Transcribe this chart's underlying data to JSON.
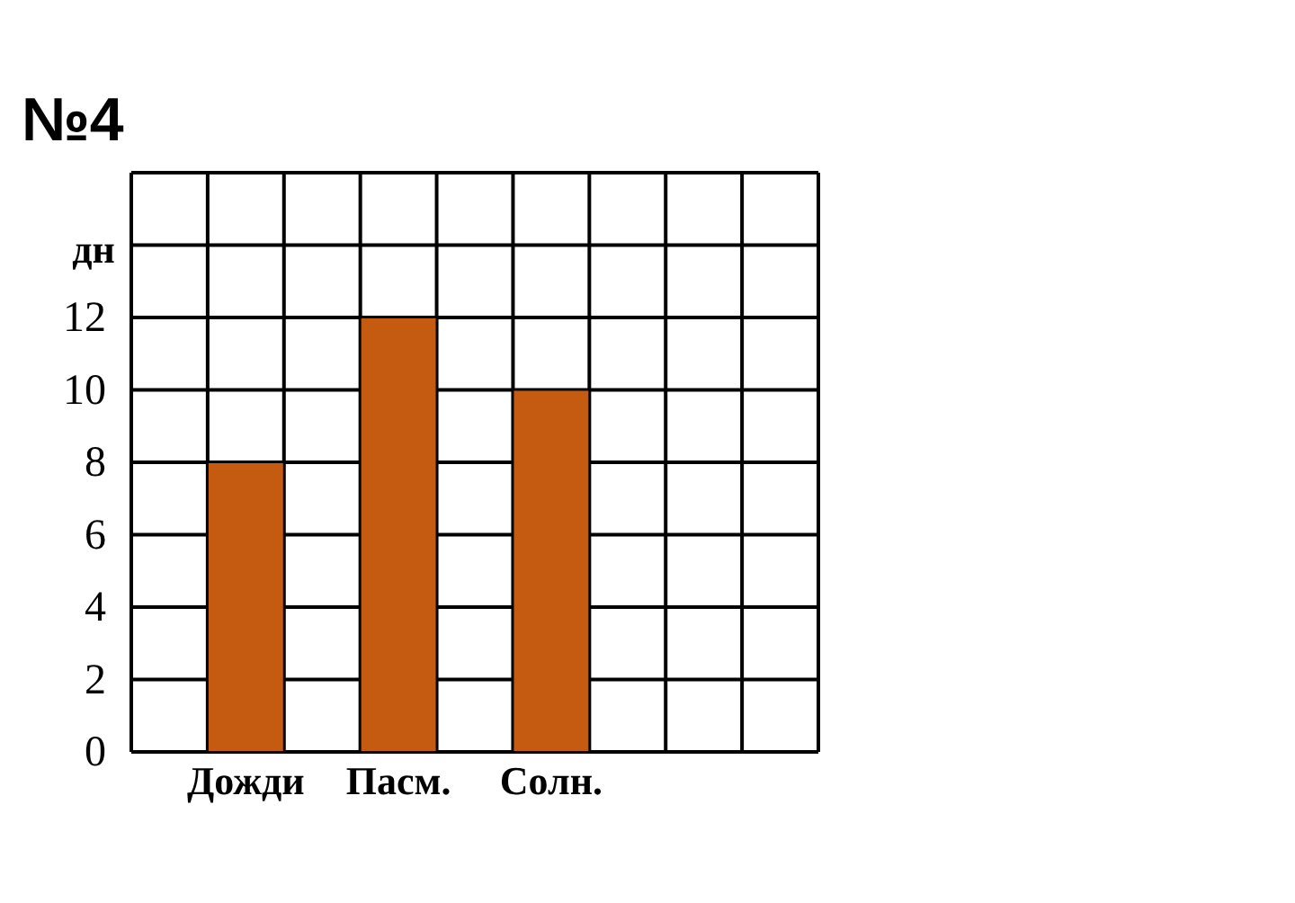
{
  "chart_data": {
    "type": "bar",
    "title": "№4",
    "ylabel": "дн",
    "categories": [
      null,
      "Дожди",
      null,
      "Пасм.",
      null,
      "Солн.",
      null,
      null,
      null
    ],
    "values": [
      null,
      8,
      null,
      12,
      null,
      10,
      null,
      null,
      null
    ],
    "color": "#c55a11",
    "ylim": [
      0,
      16
    ],
    "yticks": [
      0,
      2,
      4,
      6,
      8,
      10,
      12,
      {
        "value": 14,
        "label": null
      },
      {
        "value": 16,
        "label": null
      }
    ],
    "grid": true
  }
}
